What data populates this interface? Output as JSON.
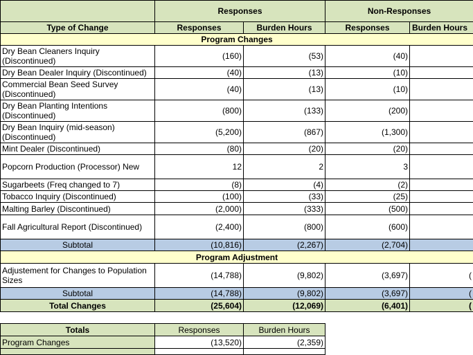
{
  "main": {
    "group_headers": [
      "",
      "Responses",
      "Non-Responses"
    ],
    "col_headers": [
      "Type of Change",
      "Responses",
      "Burden Hours",
      "Responses",
      "Burden Hours"
    ],
    "section1": "Program Changes",
    "rows": [
      {
        "label": "Dry Bean Cleaners Inquiry (Discontinued)",
        "v": [
          "(160)",
          "(53)",
          "(40)"
        ]
      },
      {
        "label": "Dry Bean Dealer Inquiry (Discontinued)",
        "v": [
          "(40)",
          "(13)",
          "(10)"
        ]
      },
      {
        "label": "Commercial Bean Seed Survey (Discontinued)",
        "v": [
          "(40)",
          "(13)",
          "(10)"
        ]
      },
      {
        "label": "Dry Bean Planting Intentions (Discontinued)",
        "v": [
          "(800)",
          "(133)",
          "(200)"
        ]
      },
      {
        "label": "Dry Bean Inquiry (mid-season) (Discontinued)",
        "v": [
          "(5,200)",
          "(867)",
          "(1,300)"
        ]
      },
      {
        "label": "Mint Dealer (Discontinued)",
        "v": [
          "(80)",
          "(20)",
          "(20)"
        ]
      },
      {
        "label": "Popcorn Production (Processor) New",
        "v": [
          "12",
          "2",
          "3"
        ]
      },
      {
        "label": "Sugarbeets (Freq changed to 7)",
        "v": [
          "(8)",
          "(4)",
          "(2)"
        ]
      },
      {
        "label": "Tobacco Inquiry (Discontinued)",
        "v": [
          "(100)",
          "(33)",
          "(25)"
        ]
      },
      {
        "label": "Malting Barley (Discontinued)",
        "v": [
          "(2,000)",
          "(333)",
          "(500)"
        ]
      },
      {
        "label": "Fall Agricultural Report (Discontinued)",
        "v": [
          "(2,400)",
          "(800)",
          "(600)"
        ]
      }
    ],
    "subtotal1": {
      "label": "Subtotal",
      "v": [
        "(10,816)",
        "(2,267)",
        "(2,704)"
      ]
    },
    "section2": "Program Adjustment",
    "adj_row": {
      "label": "Adjustement for Changes to Population Sizes",
      "v": [
        "(14,788)",
        "(9,802)",
        "(3,697)",
        "("
      ]
    },
    "subtotal2": {
      "label": "Subtotal",
      "v": [
        "(14,788)",
        "(9,802)",
        "(3,697)",
        "("
      ]
    },
    "total": {
      "label": "Total Changes",
      "v": [
        "(25,604)",
        "(12,069)",
        "(6,401)",
        "("
      ]
    }
  },
  "totals": {
    "headers": [
      "Totals",
      "Responses",
      "Burden Hours"
    ],
    "rows": [
      {
        "label": "Program Changes",
        "v": [
          "(13,520)",
          "(2,359)"
        ]
      }
    ]
  }
}
